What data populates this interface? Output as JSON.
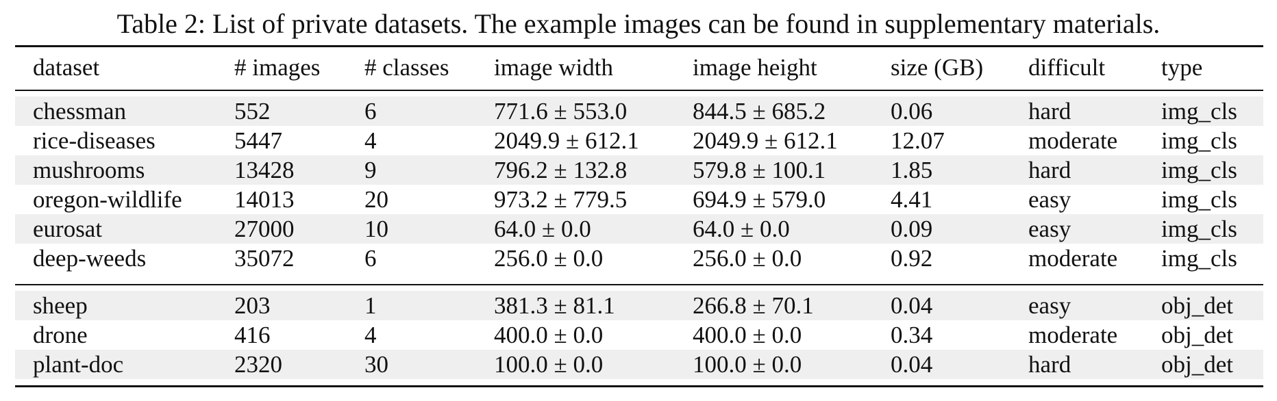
{
  "caption": "Table 2: List of private datasets. The example images can be found in supplementary materials.",
  "table": {
    "headers": [
      "dataset",
      "# images",
      "# classes",
      "image width",
      "image height",
      "size (GB)",
      "difficult",
      "type"
    ],
    "groups": [
      {
        "rows": [
          [
            "chessman",
            "552",
            "6",
            "771.6 ± 553.0",
            "844.5 ± 685.2",
            "0.06",
            "hard",
            "img_cls"
          ],
          [
            "rice-diseases",
            "5447",
            "4",
            "2049.9 ± 612.1",
            "2049.9 ± 612.1",
            "12.07",
            "moderate",
            "img_cls"
          ],
          [
            "mushrooms",
            "13428",
            "9",
            "796.2 ± 132.8",
            "579.8 ± 100.1",
            "1.85",
            "hard",
            "img_cls"
          ],
          [
            "oregon-wildlife",
            "14013",
            "20",
            "973.2 ± 779.5",
            "694.9 ± 579.0",
            "4.41",
            "easy",
            "img_cls"
          ],
          [
            "eurosat",
            "27000",
            "10",
            "64.0 ± 0.0",
            "64.0 ± 0.0",
            "0.09",
            "easy",
            "img_cls"
          ],
          [
            "deep-weeds",
            "35072",
            "6",
            "256.0 ± 0.0",
            "256.0 ± 0.0",
            "0.92",
            "moderate",
            "img_cls"
          ]
        ]
      },
      {
        "rows": [
          [
            "sheep",
            "203",
            "1",
            "381.3 ± 81.1",
            "266.8 ± 70.1",
            "0.04",
            "easy",
            "obj_det"
          ],
          [
            "drone",
            "416",
            "4",
            "400.0 ± 0.0",
            "400.0 ± 0.0",
            "0.34",
            "moderate",
            "obj_det"
          ],
          [
            "plant-doc",
            "2320",
            "30",
            "100.0 ± 0.0",
            "100.0 ± 0.0",
            "0.04",
            "hard",
            "obj_det"
          ]
        ]
      }
    ]
  }
}
